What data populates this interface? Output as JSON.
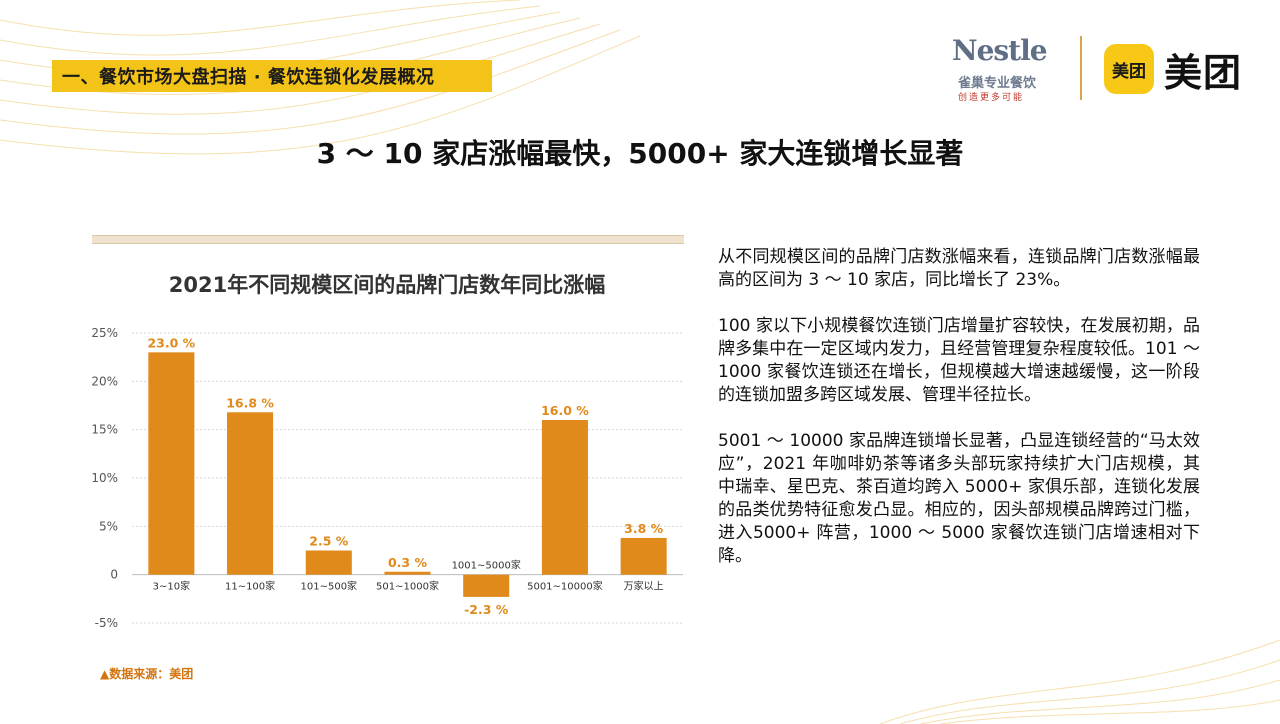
{
  "section_banner": "一、餐饮市场大盘扫描 · 餐饮连锁化发展概况",
  "logos": {
    "nestle_word": "Nestle",
    "nestle_sub": "雀巢专业餐饮",
    "nestle_tagline": "创造更多可能",
    "meituan_badge": "美团",
    "meituan_word": "美团"
  },
  "main_title": "3 ～ 10 家店涨幅最快，5000+ 家大连锁增长显著",
  "chart_data": {
    "type": "bar",
    "title": "2021年不同规模区间的品牌门店数年同比涨幅",
    "categories": [
      "3~10家",
      "11~100家",
      "101~500家",
      "501~1000家",
      "1001~5000家",
      "5001~10000家",
      "万家以上"
    ],
    "values": [
      23.0,
      16.8,
      2.5,
      0.3,
      -2.3,
      16.0,
      3.8
    ],
    "value_labels": [
      "23.0 %",
      "16.8 %",
      "2.5 %",
      "0.3 %",
      "-2.3 %",
      "16.0 %",
      "3.8 %"
    ],
    "y_ticks": [
      -5,
      0,
      5,
      10,
      15,
      20,
      25
    ],
    "y_tick_labels": [
      "-5%",
      "0",
      "5%",
      "10%",
      "15%",
      "20%",
      "25%"
    ],
    "ylim": [
      -5,
      25
    ],
    "grid": true,
    "bar_color": "#e08a1c",
    "label_color": "#e08a1c",
    "xlabel": "",
    "ylabel": ""
  },
  "source_note": "▲数据来源：美团",
  "paragraphs": [
    "从不同规模区间的品牌门店数涨幅来看，连锁品牌门店数涨幅最高的区间为 3 ～ 10 家店，同比增长了 23%。",
    "100 家以下小规模餐饮连锁门店增量扩容较快，在发展初期，品牌多集中在一定区域内发力，且经营管理复杂程度较低。101 ～ 1000 家餐饮连锁还在增长，但规模越大增速越缓慢，这一阶段的连锁加盟多跨区域发展、管理半径拉长。",
    "5001 ～ 10000 家品牌连锁增长显著，凸显连锁经营的“马太效应”，2021 年咖啡奶茶等诸多头部玩家持续扩大门店规模，其中瑞幸、星巴克、茶百道均跨入 5000+ 家俱乐部，连锁化发展的品类优势特征愈发凸显。相应的，因头部规模品牌跨过门槛，进入5000+ 阵营，1000 ～ 5000 家餐饮连锁门店增速相对下降。"
  ]
}
